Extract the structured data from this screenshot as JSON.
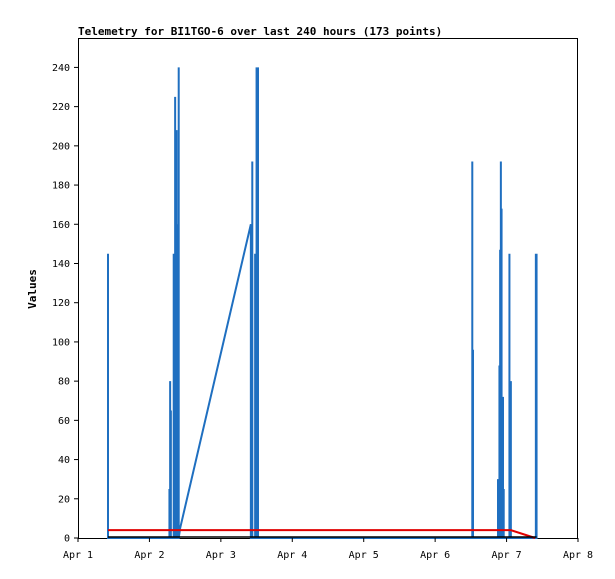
{
  "chart_data": {
    "type": "line",
    "title": "Telemetry for BI1TGO-6 over last 240 hours (173 points)",
    "xlabel": "",
    "ylabel": "Values",
    "xlim": [
      1.0,
      8.0
    ],
    "ylim": [
      0,
      255
    ],
    "x_ticks": [
      {
        "value": 1,
        "label": "Apr 1"
      },
      {
        "value": 2,
        "label": "Apr 2"
      },
      {
        "value": 3,
        "label": "Apr 3"
      },
      {
        "value": 4,
        "label": "Apr 4"
      },
      {
        "value": 5,
        "label": "Apr 5"
      },
      {
        "value": 6,
        "label": "Apr 6"
      },
      {
        "value": 7,
        "label": "Apr 7"
      },
      {
        "value": 8,
        "label": "Apr 8"
      }
    ],
    "y_ticks": [
      0,
      20,
      40,
      60,
      80,
      100,
      120,
      140,
      160,
      180,
      200,
      220,
      240
    ],
    "grid": false,
    "series": [
      {
        "color": "#1f6fc0",
        "points": [
          [
            1.42,
            0
          ],
          [
            1.42,
            145
          ],
          [
            1.42,
            0
          ],
          [
            2.28,
            0
          ],
          [
            2.28,
            25
          ],
          [
            2.28,
            0
          ],
          [
            2.29,
            0
          ],
          [
            2.29,
            80
          ],
          [
            2.29,
            0
          ],
          [
            2.3,
            0
          ],
          [
            2.3,
            65
          ],
          [
            2.3,
            0
          ],
          [
            2.34,
            0
          ],
          [
            2.34,
            145
          ],
          [
            2.34,
            0
          ],
          [
            2.36,
            0
          ],
          [
            2.36,
            225
          ],
          [
            2.36,
            0
          ],
          [
            2.38,
            0
          ],
          [
            2.38,
            208
          ],
          [
            2.38,
            0
          ],
          [
            2.39,
            0
          ],
          [
            2.39,
            160
          ],
          [
            2.39,
            0
          ],
          [
            2.41,
            0
          ],
          [
            2.41,
            240
          ],
          [
            2.41,
            0
          ],
          [
            2.43,
            5
          ],
          [
            3.42,
            160
          ],
          [
            3.42,
            0
          ],
          [
            3.44,
            0
          ],
          [
            3.44,
            192
          ],
          [
            3.44,
            0
          ],
          [
            3.48,
            0
          ],
          [
            3.48,
            145
          ],
          [
            3.48,
            0
          ],
          [
            3.5,
            0
          ],
          [
            3.5,
            240
          ],
          [
            3.5,
            0
          ],
          [
            3.52,
            0
          ],
          [
            3.52,
            240
          ],
          [
            3.52,
            0
          ],
          [
            6.52,
            0
          ],
          [
            6.52,
            192
          ],
          [
            6.52,
            0
          ],
          [
            6.53,
            0
          ],
          [
            6.53,
            96
          ],
          [
            6.53,
            0
          ],
          [
            6.88,
            0
          ],
          [
            6.88,
            30
          ],
          [
            6.88,
            0
          ],
          [
            6.9,
            0
          ],
          [
            6.9,
            88
          ],
          [
            6.9,
            0
          ],
          [
            6.91,
            0
          ],
          [
            6.91,
            147
          ],
          [
            6.91,
            0
          ],
          [
            6.92,
            0
          ],
          [
            6.92,
            192
          ],
          [
            6.92,
            0
          ],
          [
            6.93,
            0
          ],
          [
            6.93,
            168
          ],
          [
            6.93,
            0
          ],
          [
            6.95,
            0
          ],
          [
            6.95,
            72
          ],
          [
            6.95,
            0
          ],
          [
            6.96,
            0
          ],
          [
            6.96,
            25
          ],
          [
            6.96,
            0
          ],
          [
            7.04,
            0
          ],
          [
            7.04,
            145
          ],
          [
            7.04,
            0
          ],
          [
            7.06,
            0
          ],
          [
            7.06,
            80
          ],
          [
            7.06,
            0
          ],
          [
            7.41,
            0
          ],
          [
            7.41,
            145
          ],
          [
            7.41,
            0
          ],
          [
            7.42,
            0
          ],
          [
            7.42,
            145
          ],
          [
            7.42,
            0
          ]
        ]
      },
      {
        "color": "#e00000",
        "points": [
          [
            1.42,
            4
          ],
          [
            7.06,
            4
          ],
          [
            7.4,
            0
          ]
        ]
      },
      {
        "color": "#000000",
        "points": [
          [
            1.42,
            0.5
          ],
          [
            7.42,
            0.5
          ]
        ]
      }
    ]
  }
}
